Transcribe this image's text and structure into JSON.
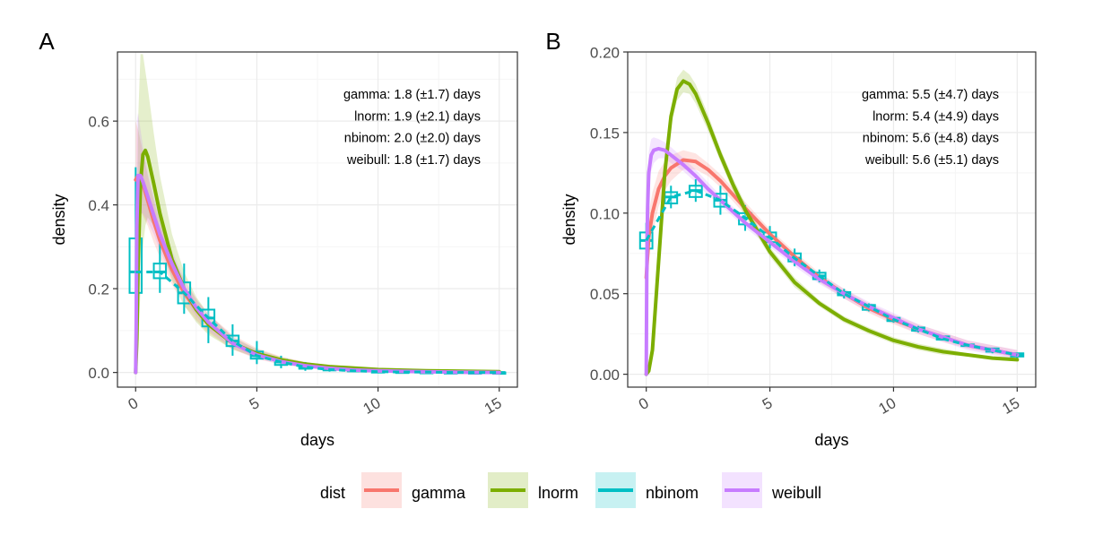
{
  "colors": {
    "gamma": "#F8766D",
    "lnorm": "#7CAE00",
    "nbinom": "#00BFC4",
    "weibull": "#C77CFF",
    "grid_major": "#EBEBEB",
    "grid_minor": "#F5F5F5",
    "panel_border": "#333333"
  },
  "legend": {
    "title": "dist",
    "entries": [
      "gamma",
      "lnorm",
      "nbinom",
      "weibull"
    ]
  },
  "chart_data": [
    {
      "panel_tag": "A",
      "type": "line",
      "xlabel": "days",
      "ylabel": "density",
      "xlim": [
        -0.75,
        15.75
      ],
      "ylim": [
        -0.035,
        0.765
      ],
      "xticks": [
        0,
        5,
        10,
        15
      ],
      "xticklabels": [
        "0",
        "5",
        "10",
        "15"
      ],
      "yticks": [
        0.0,
        0.2,
        0.4,
        0.6
      ],
      "yticklabels": [
        "0.0",
        "0.2",
        "0.4",
        "0.6"
      ],
      "grid": true,
      "annotations": [
        "gamma: 1.8 (±1.7) days",
        "lnorm: 1.9 (±2.1) days",
        "nbinom: 2.0 (±2.0) days",
        "weibull: 1.8 (±1.7) days"
      ],
      "series": [
        {
          "name": "gamma",
          "x": [
            0,
            0.1,
            0.25,
            0.5,
            0.75,
            1,
            1.5,
            2,
            2.5,
            3,
            4,
            5,
            6,
            7,
            8,
            9,
            10,
            12,
            15
          ],
          "y": [
            0.46,
            0.47,
            0.46,
            0.41,
            0.36,
            0.315,
            0.245,
            0.19,
            0.15,
            0.115,
            0.07,
            0.043,
            0.027,
            0.017,
            0.01,
            0.006,
            0.004,
            0.002,
            0.0
          ],
          "band_upper": [
            0.6,
            0.58,
            0.54,
            0.47,
            0.41,
            0.355,
            0.28,
            0.22,
            0.175,
            0.14,
            0.09,
            0.058,
            0.038,
            0.025,
            0.016,
            0.01,
            0.007,
            0.004,
            0.001
          ],
          "band_lower": [
            0.32,
            0.36,
            0.38,
            0.35,
            0.31,
            0.275,
            0.21,
            0.16,
            0.125,
            0.095,
            0.055,
            0.032,
            0.019,
            0.011,
            0.006,
            0.003,
            0.002,
            0.001,
            0.0
          ]
        },
        {
          "name": "lnorm",
          "x": [
            0,
            0.05,
            0.1,
            0.2,
            0.3,
            0.4,
            0.5,
            0.75,
            1,
            1.5,
            2,
            2.5,
            3,
            4,
            5,
            6,
            7,
            8,
            10,
            12,
            15
          ],
          "y": [
            0.0,
            0.08,
            0.25,
            0.45,
            0.52,
            0.53,
            0.515,
            0.45,
            0.38,
            0.27,
            0.2,
            0.15,
            0.115,
            0.07,
            0.045,
            0.03,
            0.02,
            0.014,
            0.007,
            0.004,
            0.002
          ],
          "band_upper": [
            0.0,
            0.3,
            0.6,
            0.76,
            0.76,
            0.72,
            0.68,
            0.57,
            0.47,
            0.33,
            0.24,
            0.18,
            0.14,
            0.085,
            0.055,
            0.037,
            0.025,
            0.018,
            0.01,
            0.006,
            0.003
          ],
          "band_lower": [
            0.0,
            0.0,
            0.05,
            0.2,
            0.3,
            0.35,
            0.37,
            0.35,
            0.31,
            0.22,
            0.16,
            0.12,
            0.09,
            0.055,
            0.035,
            0.023,
            0.015,
            0.01,
            0.005,
            0.002,
            0.001
          ]
        },
        {
          "name": "nbinom",
          "x": [
            0,
            1,
            2,
            3,
            4,
            5,
            6,
            7,
            8,
            9,
            10,
            11,
            12,
            13,
            14,
            15
          ],
          "y": [
            0.24,
            0.24,
            0.19,
            0.13,
            0.075,
            0.04,
            0.025,
            0.013,
            0.007,
            0.004,
            0.002,
            0.001,
            0.001,
            0.0,
            0.0,
            0.0
          ],
          "whisker_low": [
            0.12,
            0.19,
            0.14,
            0.07,
            0.04,
            0.02,
            0.01,
            0.004,
            0.002,
            0.001,
            0.0,
            0.0,
            0.0,
            0.0,
            0.0,
            0.0
          ],
          "whisker_high": [
            0.49,
            0.31,
            0.26,
            0.18,
            0.115,
            0.075,
            0.04,
            0.025,
            0.013,
            0.008,
            0.005,
            0.003,
            0.002,
            0.001,
            0.001,
            0.0
          ],
          "q1": [
            0.19,
            0.225,
            0.165,
            0.11,
            0.063,
            0.033,
            0.018,
            0.009,
            0.005,
            0.003,
            0.0015,
            0.0008,
            0.0005,
            0.0,
            0.0,
            0.0
          ],
          "q3": [
            0.32,
            0.26,
            0.215,
            0.15,
            0.088,
            0.05,
            0.03,
            0.018,
            0.01,
            0.006,
            0.003,
            0.002,
            0.0012,
            0.0006,
            0.0003,
            0.0001
          ]
        },
        {
          "name": "weibull",
          "x": [
            0,
            0.02,
            0.05,
            0.1,
            0.2,
            0.3,
            0.5,
            0.75,
            1,
            1.5,
            2,
            2.5,
            3,
            4,
            5,
            6,
            7,
            8,
            9,
            10,
            12,
            15
          ],
          "y": [
            0.0,
            0.1,
            0.35,
            0.47,
            0.47,
            0.455,
            0.42,
            0.375,
            0.33,
            0.26,
            0.2,
            0.155,
            0.12,
            0.07,
            0.042,
            0.026,
            0.016,
            0.01,
            0.006,
            0.004,
            0.0015,
            0.0
          ],
          "band_upper": [
            0.0,
            0.25,
            0.6,
            0.62,
            0.58,
            0.54,
            0.48,
            0.42,
            0.37,
            0.29,
            0.225,
            0.175,
            0.14,
            0.085,
            0.053,
            0.034,
            0.021,
            0.013,
            0.008,
            0.005,
            0.002,
            0.001
          ],
          "band_lower": [
            0.0,
            0.03,
            0.15,
            0.33,
            0.38,
            0.38,
            0.36,
            0.33,
            0.29,
            0.23,
            0.175,
            0.135,
            0.1,
            0.058,
            0.033,
            0.02,
            0.012,
            0.007,
            0.004,
            0.002,
            0.001,
            0.0
          ]
        }
      ]
    },
    {
      "panel_tag": "B",
      "type": "line",
      "xlabel": "days",
      "ylabel": "density",
      "xlim": [
        -0.75,
        15.75
      ],
      "ylim": [
        -0.008,
        0.2
      ],
      "xticks": [
        0,
        5,
        10,
        15
      ],
      "xticklabels": [
        "0",
        "5",
        "10",
        "15"
      ],
      "yticks": [
        0.0,
        0.05,
        0.1,
        0.15,
        0.2
      ],
      "yticklabels": [
        "0.00",
        "0.05",
        "0.10",
        "0.15",
        "0.20"
      ],
      "grid": true,
      "annotations": [
        "gamma: 5.5 (±4.7) days",
        "lnorm: 5.4 (±4.9) days",
        "nbinom: 5.6 (±4.8) days",
        "weibull: 5.6 (±5.1) days"
      ],
      "series": [
        {
          "name": "gamma",
          "x": [
            0,
            0.1,
            0.25,
            0.5,
            0.75,
            1,
            1.5,
            2,
            2.5,
            3,
            4,
            5,
            6,
            7,
            8,
            9,
            10,
            11,
            12,
            13,
            14,
            15
          ],
          "y": [
            0.06,
            0.085,
            0.1,
            0.115,
            0.123,
            0.128,
            0.133,
            0.132,
            0.127,
            0.12,
            0.103,
            0.087,
            0.073,
            0.06,
            0.05,
            0.041,
            0.034,
            0.028,
            0.023,
            0.018,
            0.015,
            0.012
          ],
          "band_upper": [
            0.08,
            0.1,
            0.113,
            0.126,
            0.132,
            0.136,
            0.139,
            0.137,
            0.131,
            0.124,
            0.107,
            0.09,
            0.076,
            0.063,
            0.053,
            0.044,
            0.037,
            0.031,
            0.026,
            0.021,
            0.018,
            0.015
          ],
          "band_lower": [
            0.04,
            0.07,
            0.087,
            0.104,
            0.114,
            0.12,
            0.127,
            0.127,
            0.123,
            0.116,
            0.099,
            0.084,
            0.07,
            0.057,
            0.047,
            0.038,
            0.031,
            0.025,
            0.02,
            0.016,
            0.013,
            0.01
          ]
        },
        {
          "name": "lnorm",
          "x": [
            0,
            0.1,
            0.25,
            0.5,
            0.75,
            1,
            1.25,
            1.5,
            1.75,
            2,
            2.5,
            3,
            3.5,
            4,
            5,
            6,
            7,
            8,
            9,
            10,
            11,
            12,
            13,
            14,
            15
          ],
          "y": [
            0.0,
            0.002,
            0.015,
            0.07,
            0.125,
            0.16,
            0.177,
            0.182,
            0.18,
            0.174,
            0.156,
            0.136,
            0.118,
            0.102,
            0.076,
            0.057,
            0.044,
            0.034,
            0.027,
            0.021,
            0.017,
            0.014,
            0.012,
            0.01,
            0.009
          ],
          "band_upper": [
            0.0,
            0.003,
            0.018,
            0.076,
            0.131,
            0.166,
            0.184,
            0.189,
            0.186,
            0.18,
            0.161,
            0.14,
            0.122,
            0.106,
            0.079,
            0.06,
            0.046,
            0.036,
            0.029,
            0.023,
            0.019,
            0.016,
            0.013,
            0.011,
            0.01
          ],
          "band_lower": [
            0.0,
            0.001,
            0.012,
            0.064,
            0.119,
            0.154,
            0.17,
            0.175,
            0.174,
            0.168,
            0.151,
            0.132,
            0.114,
            0.098,
            0.073,
            0.054,
            0.042,
            0.032,
            0.025,
            0.019,
            0.015,
            0.012,
            0.011,
            0.009,
            0.008
          ]
        },
        {
          "name": "nbinom",
          "x": [
            0,
            1,
            2,
            3,
            4,
            5,
            6,
            7,
            8,
            9,
            10,
            11,
            12,
            13,
            14,
            15
          ],
          "y": [
            0.083,
            0.11,
            0.114,
            0.108,
            0.097,
            0.085,
            0.072,
            0.061,
            0.05,
            0.042,
            0.034,
            0.028,
            0.022,
            0.018,
            0.015,
            0.012
          ],
          "whisker_low": [
            0.073,
            0.103,
            0.107,
            0.099,
            0.089,
            0.078,
            0.067,
            0.057,
            0.047,
            0.039,
            0.032,
            0.026,
            0.021,
            0.017,
            0.013,
            0.01
          ],
          "whisker_high": [
            0.094,
            0.117,
            0.121,
            0.117,
            0.105,
            0.092,
            0.078,
            0.065,
            0.053,
            0.044,
            0.036,
            0.03,
            0.024,
            0.019,
            0.016,
            0.013
          ],
          "q1": [
            0.078,
            0.106,
            0.11,
            0.104,
            0.093,
            0.082,
            0.07,
            0.059,
            0.049,
            0.04,
            0.033,
            0.027,
            0.0215,
            0.0175,
            0.014,
            0.011
          ],
          "q3": [
            0.088,
            0.113,
            0.117,
            0.112,
            0.1,
            0.088,
            0.075,
            0.063,
            0.051,
            0.043,
            0.035,
            0.029,
            0.0235,
            0.0185,
            0.016,
            0.013
          ]
        },
        {
          "name": "weibull",
          "x": [
            0,
            0.02,
            0.05,
            0.1,
            0.2,
            0.3,
            0.5,
            0.75,
            1,
            1.5,
            2,
            2.5,
            3,
            4,
            5,
            6,
            7,
            8,
            9,
            10,
            11,
            12,
            13,
            14,
            15
          ],
          "y": [
            0.0,
            0.06,
            0.1,
            0.125,
            0.136,
            0.139,
            0.14,
            0.139,
            0.136,
            0.13,
            0.123,
            0.115,
            0.108,
            0.094,
            0.082,
            0.07,
            0.059,
            0.05,
            0.042,
            0.035,
            0.028,
            0.023,
            0.018,
            0.015,
            0.012
          ],
          "band_upper": [
            0.0,
            0.08,
            0.12,
            0.138,
            0.146,
            0.147,
            0.146,
            0.144,
            0.141,
            0.134,
            0.127,
            0.119,
            0.111,
            0.097,
            0.085,
            0.073,
            0.062,
            0.053,
            0.045,
            0.038,
            0.031,
            0.026,
            0.021,
            0.018,
            0.015
          ],
          "band_lower": [
            0.0,
            0.04,
            0.08,
            0.112,
            0.126,
            0.131,
            0.134,
            0.134,
            0.131,
            0.126,
            0.119,
            0.111,
            0.105,
            0.091,
            0.079,
            0.067,
            0.056,
            0.047,
            0.039,
            0.032,
            0.025,
            0.02,
            0.015,
            0.012,
            0.009
          ]
        }
      ]
    }
  ]
}
